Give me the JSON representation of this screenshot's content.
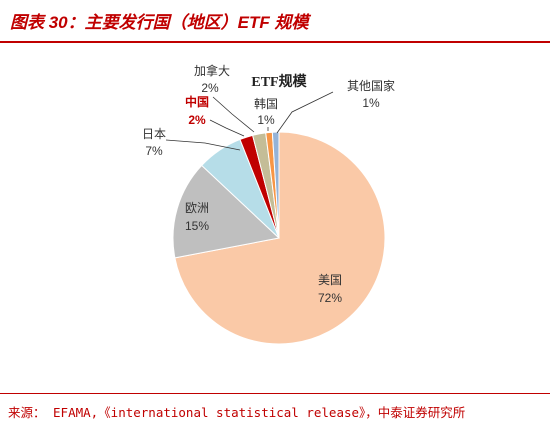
{
  "header": {
    "figure_title": "图表 30：主要发行国（地区）ETF 规模"
  },
  "footer": {
    "source": "来源： EFAMA,《international statistical release》，中泰证券研究所"
  },
  "chart_data": {
    "type": "pie",
    "title": "ETF规模",
    "start_angle_deg": 0,
    "direction": "clockwise",
    "slices": [
      {
        "name": "美国",
        "value": 72,
        "label": "72%",
        "color": "#fac9a7"
      },
      {
        "name": "欧洲",
        "value": 15,
        "label": "15%",
        "color": "#bfbfbf"
      },
      {
        "name": "日本",
        "value": 7,
        "label": "7%",
        "color": "#b6dde8"
      },
      {
        "name": "中国",
        "value": 2,
        "label": "2%",
        "color": "#c00000",
        "highlight": true
      },
      {
        "name": "加拿大",
        "value": 2,
        "label": "2%",
        "color": "#c4bd97"
      },
      {
        "name": "韩国",
        "value": 1,
        "label": "1%",
        "color": "#f79646"
      },
      {
        "name": "其他国家",
        "value": 1,
        "label": "1%",
        "color": "#95b3d7"
      }
    ],
    "colors": {
      "highlight_text": "#c00000",
      "label_text": "#333333",
      "leader_line": "#333333",
      "slice_border": "#ffffff"
    }
  }
}
